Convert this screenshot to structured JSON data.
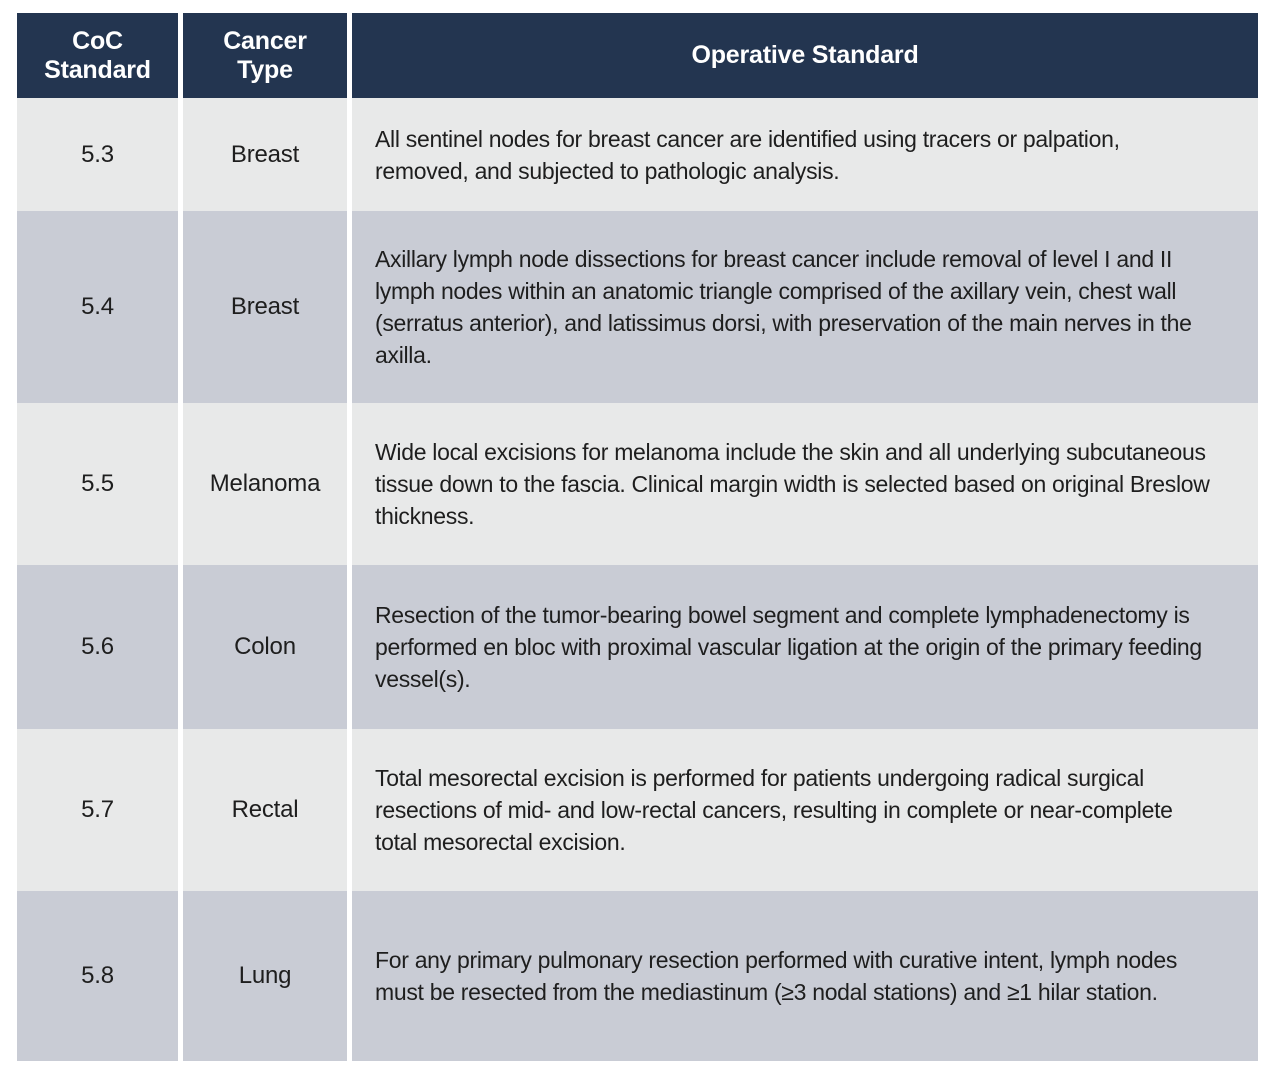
{
  "colors": {
    "header_bg": "#233550",
    "header_text": "#ffffff",
    "row_light": "#e8e9e9",
    "row_dark": "#c9ccd5",
    "body_text": "#1e1e1e",
    "page_bg": "#ffffff"
  },
  "table": {
    "columns": [
      {
        "label": "CoC Standard"
      },
      {
        "label": "Cancer Type"
      },
      {
        "label": "Operative Standard"
      }
    ],
    "rows": [
      {
        "standard": "5.3",
        "cancer_type": "Breast",
        "operative_standard": "All sentinel nodes for breast cancer are identified using tracers or palpation, removed, and subjected to pathologic analysis."
      },
      {
        "standard": "5.4",
        "cancer_type": "Breast",
        "operative_standard": "Axillary lymph node dissections for breast cancer include removal of level I and II lymph nodes within an anatomic triangle comprised of the axillary vein, chest wall (serratus anterior), and latissimus dorsi, with preservation of the main nerves in the axilla."
      },
      {
        "standard": "5.5",
        "cancer_type": "Melanoma",
        "operative_standard": "Wide local excisions for melanoma include the skin and all underlying subcutaneous tissue down to the fascia. Clinical margin width is selected based on original Breslow thickness."
      },
      {
        "standard": "5.6",
        "cancer_type": "Colon",
        "operative_standard": "Resection of the tumor-bearing bowel segment and complete lymphadenectomy is performed en bloc with proximal vascular ligation at the origin of the primary feeding vessel(s)."
      },
      {
        "standard": "5.7",
        "cancer_type": "Rectal",
        "operative_standard": "Total mesorectal excision is performed for patients undergoing radical surgical resections of mid- and low-rectal cancers, resulting in complete or near-complete total mesorectal excision."
      },
      {
        "standard": "5.8",
        "cancer_type": "Lung",
        "operative_standard": "For any primary pulmonary resection performed with curative intent, lymph nodes must be resected from the mediastinum (≥3 nodal stations) and ≥1 hilar station."
      }
    ]
  }
}
